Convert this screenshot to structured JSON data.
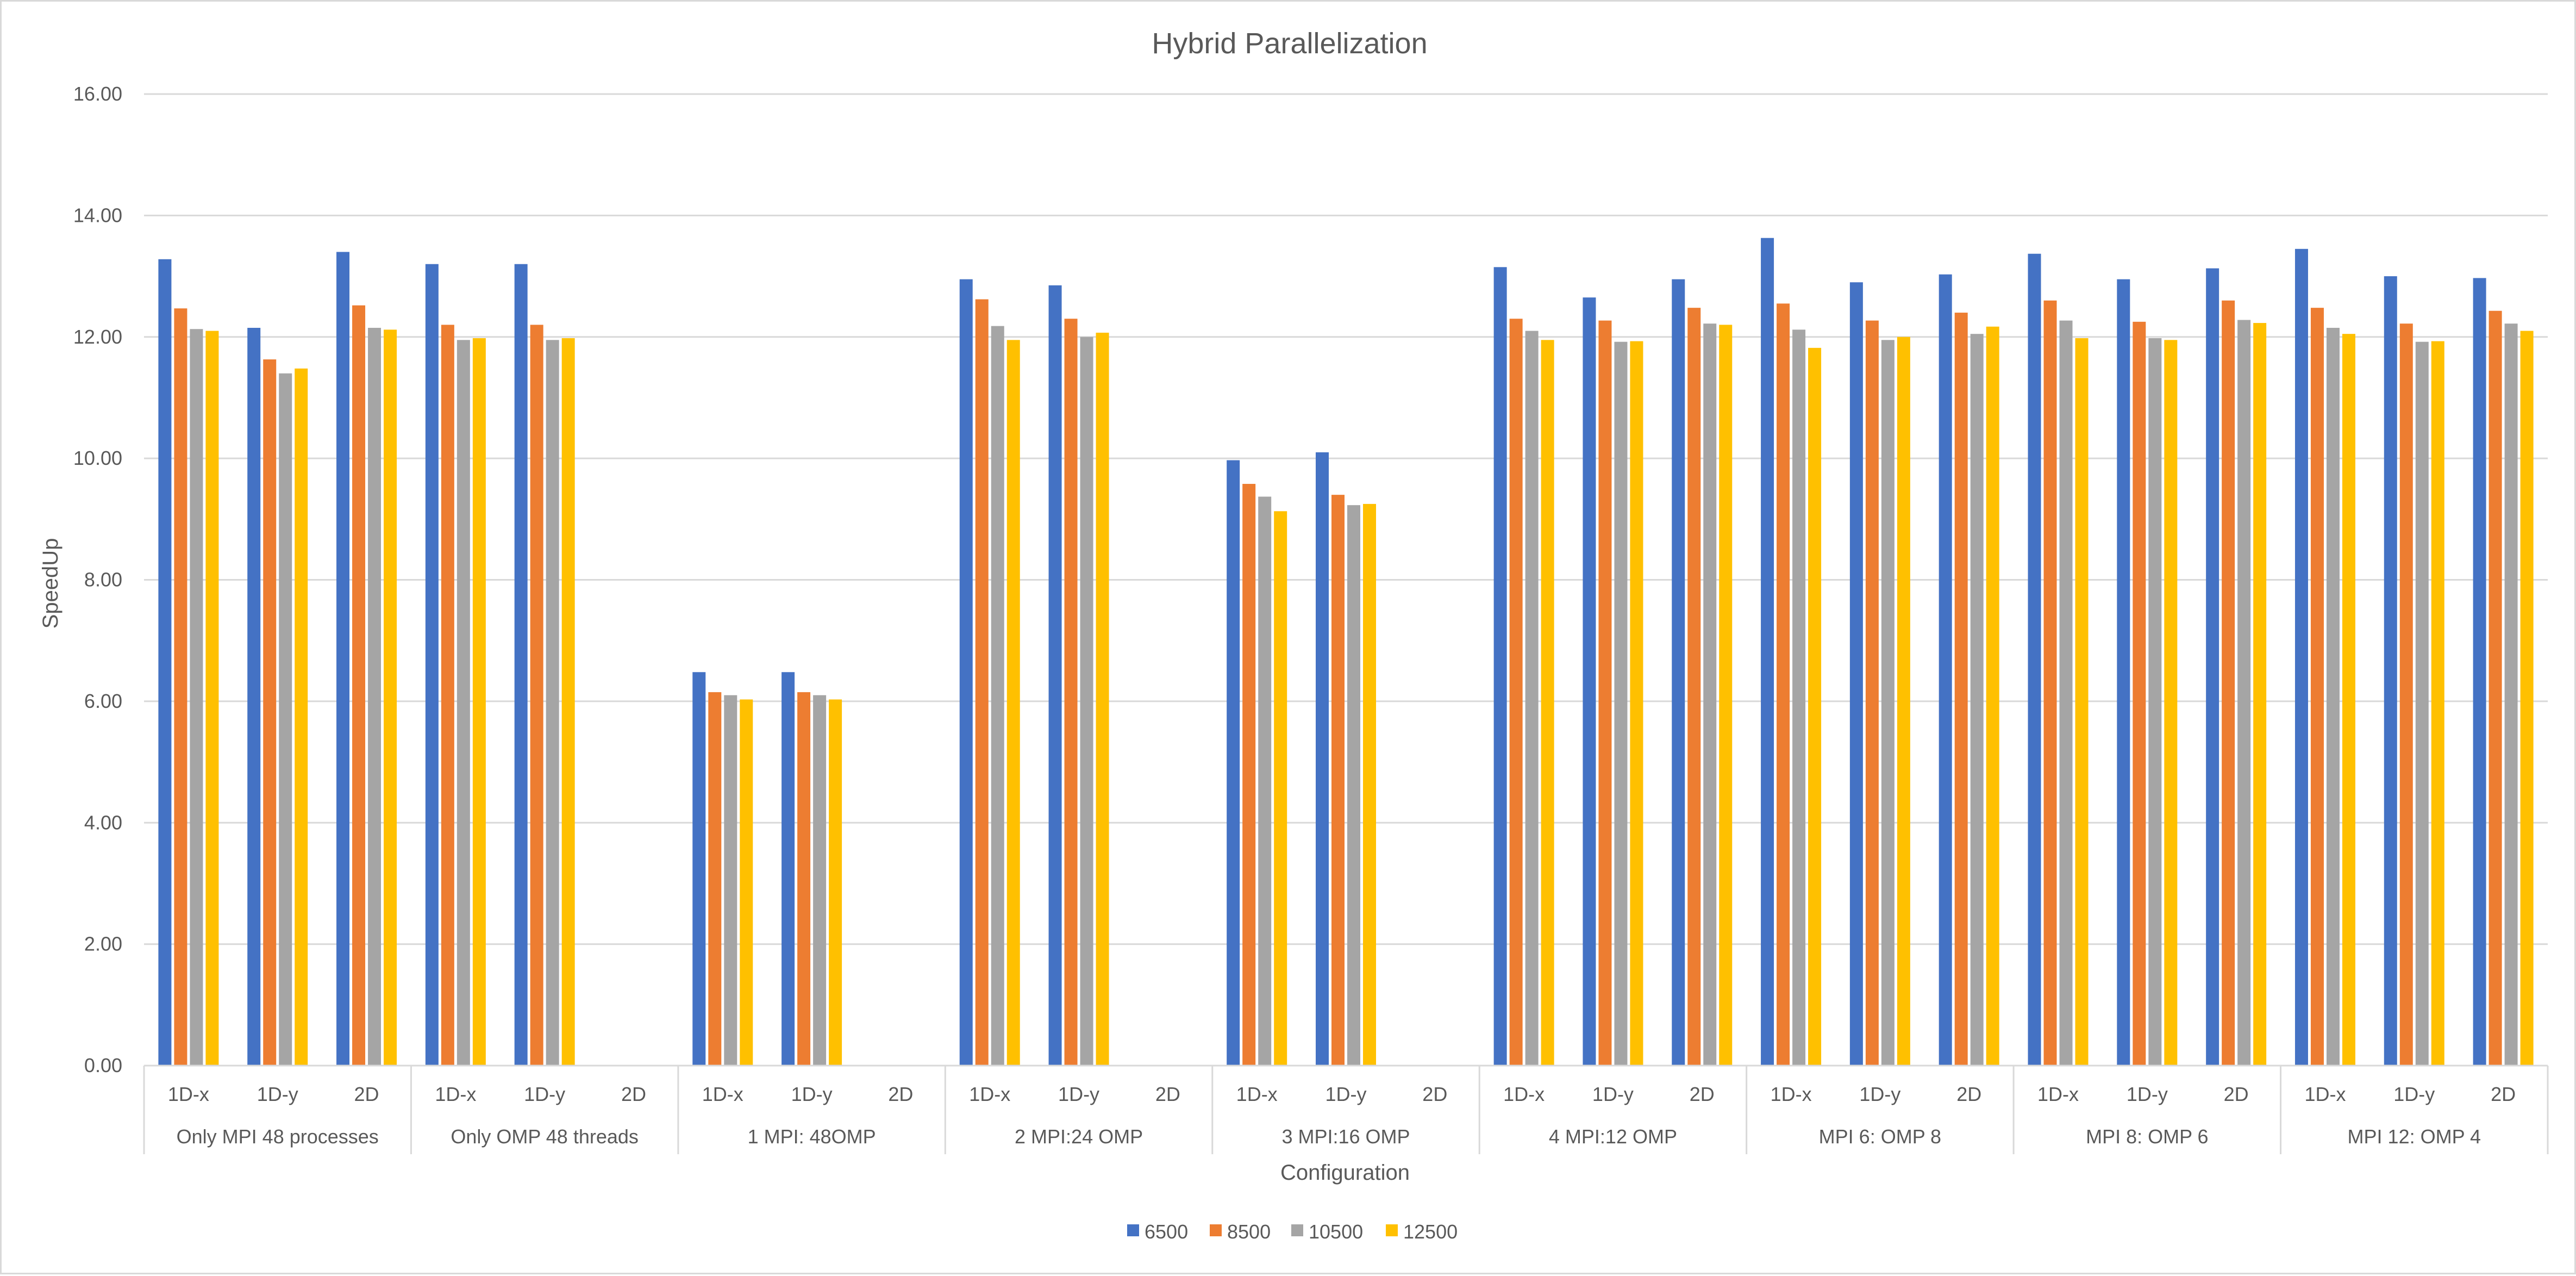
{
  "chart_data": {
    "type": "bar",
    "title": "Hybrid Parallelization",
    "xlabel": "Configuration",
    "ylabel": "SpeedUp",
    "ylim": [
      0,
      16
    ],
    "yticks": [
      "0.00",
      "2.00",
      "4.00",
      "6.00",
      "8.00",
      "10.00",
      "12.00",
      "14.00",
      "16.00"
    ],
    "grid": true,
    "legend_position": "bottom",
    "groups": [
      {
        "label": "Only MPI 48 processes",
        "categories": [
          "1D-x",
          "1D-y",
          "2D"
        ]
      },
      {
        "label": "Only OMP 48 threads",
        "categories": [
          "1D-x",
          "1D-y",
          "2D"
        ]
      },
      {
        "label": "1 MPI: 48OMP",
        "categories": [
          "1D-x",
          "1D-y",
          "2D"
        ]
      },
      {
        "label": "2 MPI:24 OMP",
        "categories": [
          "1D-x",
          "1D-y",
          "2D"
        ]
      },
      {
        "label": "3 MPI:16 OMP",
        "categories": [
          "1D-x",
          "1D-y",
          "2D"
        ]
      },
      {
        "label": "4 MPI:12 OMP",
        "categories": [
          "1D-x",
          "1D-y",
          "2D"
        ]
      },
      {
        "label": "MPI 6: OMP 8",
        "categories": [
          "1D-x",
          "1D-y",
          "2D"
        ]
      },
      {
        "label": "MPI 8: OMP 6",
        "categories": [
          "1D-x",
          "1D-y",
          "2D"
        ]
      },
      {
        "label": "MPI 12: OMP 4",
        "categories": [
          "1D-x",
          "1D-y",
          "2D"
        ]
      }
    ],
    "series": [
      {
        "name": "6500",
        "color": "#4472c4",
        "values": [
          13.28,
          12.15,
          13.4,
          13.2,
          13.2,
          null,
          6.48,
          6.48,
          null,
          12.95,
          12.85,
          null,
          9.97,
          10.1,
          null,
          13.15,
          12.65,
          12.95,
          13.63,
          12.9,
          13.03,
          13.37,
          12.95,
          13.13,
          13.45,
          13.0,
          12.97
        ]
      },
      {
        "name": "8500",
        "color": "#ed7d31",
        "values": [
          12.47,
          11.63,
          12.52,
          12.2,
          12.2,
          null,
          6.15,
          6.15,
          null,
          12.62,
          12.3,
          null,
          9.58,
          9.4,
          null,
          12.3,
          12.27,
          12.48,
          12.55,
          12.27,
          12.4,
          12.6,
          12.25,
          12.6,
          12.48,
          12.22,
          12.43
        ]
      },
      {
        "name": "10500",
        "color": "#a5a5a5",
        "values": [
          12.13,
          11.4,
          12.15,
          11.95,
          11.95,
          null,
          6.1,
          6.1,
          null,
          12.18,
          12.0,
          null,
          9.37,
          9.23,
          null,
          12.1,
          11.92,
          12.22,
          12.12,
          11.95,
          12.05,
          12.27,
          11.98,
          12.28,
          12.15,
          11.92,
          12.22
        ]
      },
      {
        "name": "12500",
        "color": "#ffc000",
        "values": [
          12.1,
          11.48,
          12.12,
          11.98,
          11.98,
          null,
          6.03,
          6.03,
          null,
          11.95,
          12.07,
          null,
          9.13,
          9.25,
          null,
          11.95,
          11.93,
          12.2,
          11.82,
          12.0,
          12.17,
          11.98,
          11.95,
          12.23,
          12.05,
          11.93,
          12.1
        ]
      }
    ]
  }
}
